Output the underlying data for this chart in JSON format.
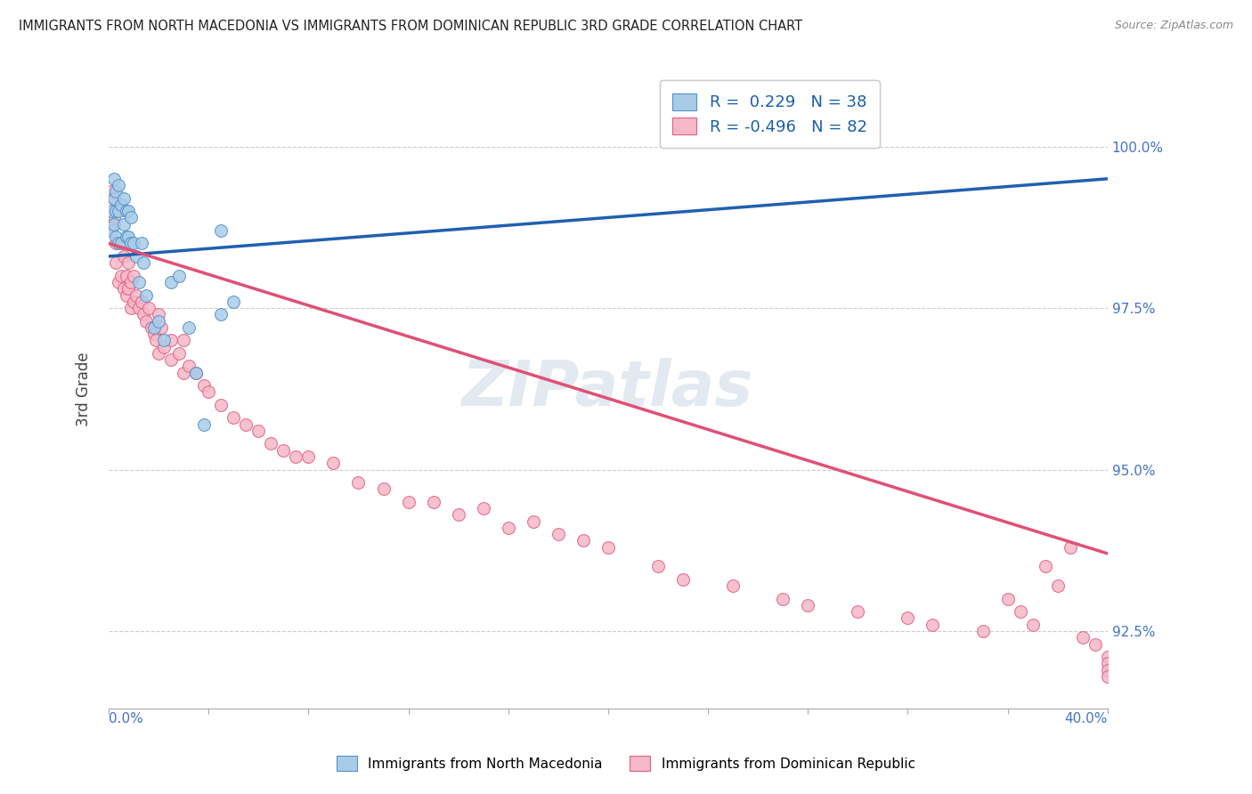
{
  "title": "IMMIGRANTS FROM NORTH MACEDONIA VS IMMIGRANTS FROM DOMINICAN REPUBLIC 3RD GRADE CORRELATION CHART",
  "source": "Source: ZipAtlas.com",
  "ylabel": "3rd Grade",
  "yticks": [
    92.5,
    95.0,
    97.5,
    100.0
  ],
  "ytick_labels": [
    "92.5%",
    "95.0%",
    "97.5%",
    "100.0%"
  ],
  "xlim": [
    0.0,
    40.0
  ],
  "ylim": [
    91.3,
    101.2
  ],
  "legend_r1": "R =  0.229",
  "legend_n1": "N = 38",
  "legend_r2": "R = -0.496",
  "legend_n2": "N = 82",
  "series1_color": "#a8cce8",
  "series2_color": "#f5b8c8",
  "series1_edge": "#5590c8",
  "series2_edge": "#e06080",
  "line1_color": "#2060b0",
  "line2_color": "#e05075",
  "watermark": "ZIPatlas",
  "blue_x": [
    0.1,
    0.1,
    0.2,
    0.2,
    0.2,
    0.3,
    0.3,
    0.3,
    0.4,
    0.4,
    0.4,
    0.5,
    0.5,
    0.6,
    0.6,
    0.7,
    0.7,
    0.8,
    0.8,
    0.9,
    0.9,
    1.0,
    1.1,
    1.2,
    1.3,
    1.4,
    1.5,
    1.8,
    2.0,
    2.2,
    2.5,
    2.8,
    3.2,
    3.5,
    3.8,
    4.5,
    4.5,
    5.0
  ],
  "blue_y": [
    98.7,
    99.0,
    98.8,
    99.2,
    99.5,
    98.6,
    99.0,
    99.3,
    98.5,
    99.0,
    99.4,
    98.5,
    99.1,
    98.8,
    99.2,
    98.6,
    99.0,
    98.6,
    99.0,
    98.5,
    98.9,
    98.5,
    98.3,
    97.9,
    98.5,
    98.2,
    97.7,
    97.2,
    97.3,
    97.0,
    97.9,
    98.0,
    97.2,
    96.5,
    95.7,
    97.4,
    98.7,
    97.6
  ],
  "pink_x": [
    0.1,
    0.1,
    0.2,
    0.2,
    0.3,
    0.3,
    0.4,
    0.5,
    0.5,
    0.6,
    0.6,
    0.7,
    0.7,
    0.8,
    0.8,
    0.9,
    0.9,
    1.0,
    1.0,
    1.1,
    1.2,
    1.3,
    1.4,
    1.5,
    1.6,
    1.7,
    1.8,
    1.9,
    2.0,
    2.0,
    2.1,
    2.2,
    2.5,
    2.5,
    2.8,
    3.0,
    3.0,
    3.2,
    3.5,
    3.8,
    4.0,
    4.5,
    5.0,
    5.5,
    6.0,
    6.5,
    7.0,
    7.5,
    8.0,
    9.0,
    10.0,
    11.0,
    12.0,
    13.0,
    14.0,
    15.0,
    16.0,
    17.0,
    18.0,
    19.0,
    20.0,
    22.0,
    23.0,
    25.0,
    27.0,
    28.0,
    30.0,
    32.0,
    33.0,
    35.0,
    36.0,
    36.5,
    37.0,
    37.5,
    38.0,
    38.5,
    39.0,
    39.5,
    40.0,
    40.0,
    40.0,
    40.0
  ],
  "pink_y": [
    98.8,
    99.3,
    98.9,
    99.2,
    98.5,
    98.2,
    97.9,
    98.0,
    98.5,
    97.8,
    98.3,
    97.7,
    98.0,
    97.8,
    98.2,
    97.5,
    97.9,
    97.6,
    98.0,
    97.7,
    97.5,
    97.6,
    97.4,
    97.3,
    97.5,
    97.2,
    97.1,
    97.0,
    96.8,
    97.4,
    97.2,
    96.9,
    96.7,
    97.0,
    96.8,
    96.5,
    97.0,
    96.6,
    96.5,
    96.3,
    96.2,
    96.0,
    95.8,
    95.7,
    95.6,
    95.4,
    95.3,
    95.2,
    95.2,
    95.1,
    94.8,
    94.7,
    94.5,
    94.5,
    94.3,
    94.4,
    94.1,
    94.2,
    94.0,
    93.9,
    93.8,
    93.5,
    93.3,
    93.2,
    93.0,
    92.9,
    92.8,
    92.7,
    92.6,
    92.5,
    93.0,
    92.8,
    92.6,
    93.5,
    93.2,
    93.8,
    92.4,
    92.3,
    92.1,
    92.0,
    91.9,
    91.8
  ],
  "blue_trend_x": [
    0.0,
    40.0
  ],
  "blue_trend_y": [
    98.3,
    99.5
  ],
  "pink_trend_x": [
    0.0,
    40.0
  ],
  "pink_trend_y": [
    98.5,
    93.7
  ]
}
